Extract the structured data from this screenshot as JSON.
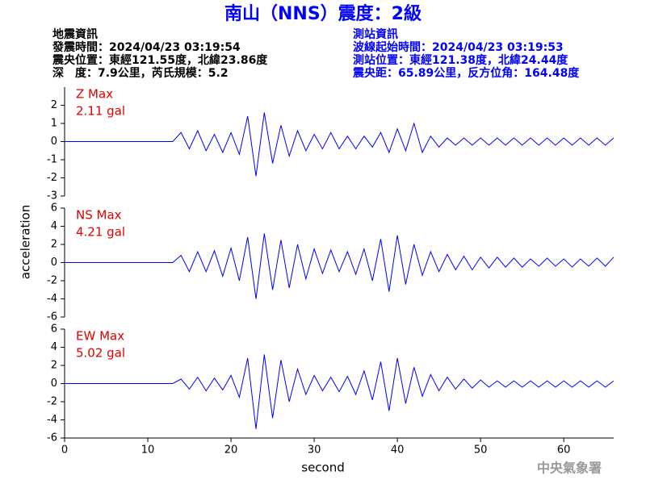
{
  "header": {
    "title": "南山（NNS）震度：2級",
    "left": [
      "地震資訊",
      "發震時間：2024/04/23 03:19:54",
      "震央位置：東經121.55度，北緯23.86度",
      "深　度：7.9公里，芮氏規模：5.2"
    ],
    "right": [
      "測站資訊",
      "波線起始時間：2024/04/23 03:19:53",
      "測站位置：東經121.38度，北緯24.44度",
      "震央距：65.89公里，反方位角：164.48度"
    ],
    "footer": "中央氣象署"
  },
  "chart_data": [
    {
      "type": "line",
      "ylabel": "acceleration",
      "annotation": [
        "Z Max",
        "2.11 gal"
      ],
      "color": "#0000ff",
      "annotation_color": "#e00000",
      "x": [
        0,
        1,
        2,
        3,
        4,
        5,
        6,
        7,
        8,
        9,
        10,
        11,
        12,
        13,
        14,
        15,
        16,
        17,
        18,
        19,
        20,
        21,
        22,
        23,
        24,
        25,
        26,
        27,
        28,
        29,
        30,
        31,
        32,
        33,
        34,
        35,
        36,
        37,
        38,
        39,
        40,
        41,
        42,
        43,
        44,
        45,
        46,
        47,
        48,
        49,
        50,
        51,
        52,
        53,
        54,
        55,
        56,
        57,
        58,
        59,
        60,
        61,
        62,
        63,
        64,
        65,
        66
      ],
      "values": [
        0,
        0,
        0,
        0,
        0,
        0,
        0,
        0,
        0,
        0,
        0,
        0,
        0,
        0,
        0.5,
        -0.4,
        0.6,
        -0.5,
        0.4,
        -0.6,
        0.5,
        -0.7,
        1.4,
        -1.9,
        1.6,
        -1.2,
        0.9,
        -0.8,
        0.6,
        -0.5,
        0.4,
        -0.4,
        0.5,
        -0.4,
        0.3,
        -0.4,
        0.3,
        -0.3,
        0.5,
        -0.6,
        0.7,
        -0.5,
        1.0,
        -0.6,
        0.3,
        -0.3,
        0.2,
        -0.2,
        0.2,
        -0.2,
        0.2,
        -0.2,
        0.2,
        -0.2,
        0.2,
        -0.2,
        0.2,
        -0.2,
        0.2,
        -0.2,
        0.2,
        -0.2,
        0.2,
        -0.2,
        0.2,
        -0.2,
        0.2
      ],
      "xlim": [
        0,
        66
      ],
      "ylim": [
        -3,
        3
      ],
      "yticks": [
        -3,
        -2,
        -1,
        0,
        1,
        2
      ]
    },
    {
      "type": "line",
      "annotation": [
        "NS Max",
        "4.21 gal"
      ],
      "color": "#0000ff",
      "annotation_color": "#e00000",
      "x": [
        0,
        1,
        2,
        3,
        4,
        5,
        6,
        7,
        8,
        9,
        10,
        11,
        12,
        13,
        14,
        15,
        16,
        17,
        18,
        19,
        20,
        21,
        22,
        23,
        24,
        25,
        26,
        27,
        28,
        29,
        30,
        31,
        32,
        33,
        34,
        35,
        36,
        37,
        38,
        39,
        40,
        41,
        42,
        43,
        44,
        45,
        46,
        47,
        48,
        49,
        50,
        51,
        52,
        53,
        54,
        55,
        56,
        57,
        58,
        59,
        60,
        61,
        62,
        63,
        64,
        65,
        66
      ],
      "values": [
        0,
        0,
        0,
        0,
        0,
        0,
        0,
        0,
        0,
        0,
        0,
        0,
        0,
        0,
        0.8,
        -1.0,
        1.2,
        -1.0,
        1.3,
        -1.5,
        1.6,
        -2.0,
        2.8,
        -4.0,
        3.2,
        -3.0,
        2.5,
        -2.8,
        2.0,
        -1.8,
        1.5,
        -1.2,
        1.4,
        -1.0,
        1.2,
        -1.3,
        1.5,
        -2.0,
        2.6,
        -3.2,
        3.0,
        -2.4,
        2.0,
        -1.4,
        1.2,
        -1.0,
        0.9,
        -0.8,
        0.7,
        -0.8,
        0.6,
        -0.6,
        0.6,
        -0.5,
        0.5,
        -0.5,
        0.4,
        -0.4,
        0.5,
        -0.4,
        0.4,
        -0.5,
        0.4,
        -0.4,
        0.5,
        -0.4,
        0.6
      ],
      "xlim": [
        0,
        66
      ],
      "ylim": [
        -6,
        6
      ],
      "yticks": [
        -6,
        -4,
        -2,
        0,
        2,
        4,
        6
      ]
    },
    {
      "type": "line",
      "xlabel": "second",
      "annotation": [
        "EW Max",
        "5.02 gal"
      ],
      "color": "#0000ff",
      "annotation_color": "#e00000",
      "x": [
        0,
        1,
        2,
        3,
        4,
        5,
        6,
        7,
        8,
        9,
        10,
        11,
        12,
        13,
        14,
        15,
        16,
        17,
        18,
        19,
        20,
        21,
        22,
        23,
        24,
        25,
        26,
        27,
        28,
        29,
        30,
        31,
        32,
        33,
        34,
        35,
        36,
        37,
        38,
        39,
        40,
        41,
        42,
        43,
        44,
        45,
        46,
        47,
        48,
        49,
        50,
        51,
        52,
        53,
        54,
        55,
        56,
        57,
        58,
        59,
        60,
        61,
        62,
        63,
        64,
        65,
        66
      ],
      "values": [
        0,
        0,
        0,
        0,
        0,
        0,
        0,
        0,
        0,
        0,
        0,
        0,
        0,
        0,
        0.5,
        -0.6,
        0.7,
        -0.8,
        0.6,
        -0.7,
        0.9,
        -1.5,
        2.8,
        -5.0,
        3.2,
        -3.8,
        2.6,
        -2.0,
        1.6,
        -1.2,
        0.9,
        -0.8,
        0.7,
        -0.9,
        0.8,
        -1.2,
        1.4,
        -1.8,
        2.4,
        -3.0,
        2.8,
        -2.2,
        1.8,
        -1.4,
        1.0,
        -0.8,
        0.7,
        -0.6,
        0.5,
        -0.5,
        0.4,
        -0.4,
        0.3,
        -0.4,
        0.3,
        -0.4,
        0.3,
        -0.4,
        0.3,
        -0.4,
        0.3,
        -0.4,
        0.3,
        -0.4,
        0.3,
        -0.4,
        0.3
      ],
      "xlim": [
        0,
        66
      ],
      "ylim": [
        -6,
        6
      ],
      "yticks": [
        -6,
        -4,
        -2,
        0,
        2,
        4,
        6
      ],
      "xticks": [
        0,
        10,
        20,
        30,
        40,
        50,
        60
      ]
    }
  ]
}
